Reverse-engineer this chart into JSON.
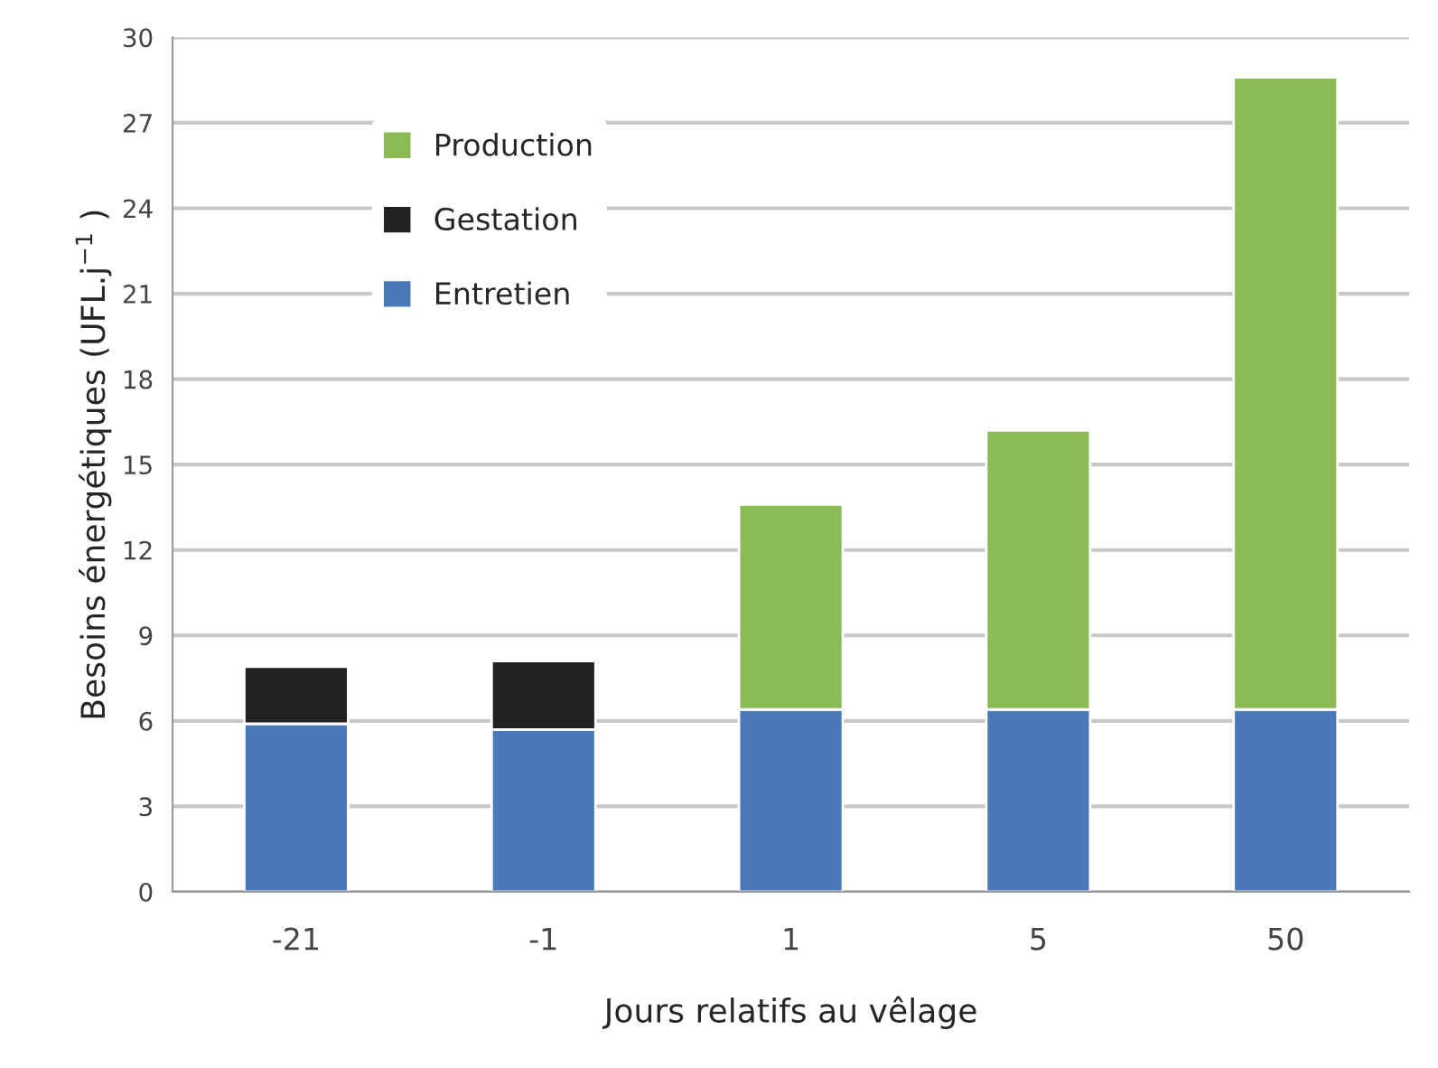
{
  "chart_data": {
    "type": "bar",
    "stacked": true,
    "xlabel": "Jours relatifs au vêlage",
    "ylabel": "Besoins énergétiques (UFL.j$^{−1}$ )",
    "categories": [
      "-21",
      "-1",
      "1",
      "5",
      "50"
    ],
    "series": [
      {
        "name": "Entretien",
        "color": "#4a78b8",
        "values": [
          5.9,
          5.7,
          6.4,
          6.4,
          6.4
        ]
      },
      {
        "name": "Gestation",
        "color": "#222222",
        "values": [
          2.0,
          2.4,
          null,
          null,
          null
        ]
      },
      {
        "name": "Production",
        "color": "#8cbb56",
        "values": [
          null,
          null,
          7.2,
          9.8,
          22.2
        ]
      }
    ],
    "ylim": [
      0,
      30
    ],
    "yticks": [
      0,
      3,
      6,
      9,
      12,
      15,
      18,
      21,
      24,
      27,
      30
    ],
    "grid": "y",
    "legend": "top left"
  }
}
